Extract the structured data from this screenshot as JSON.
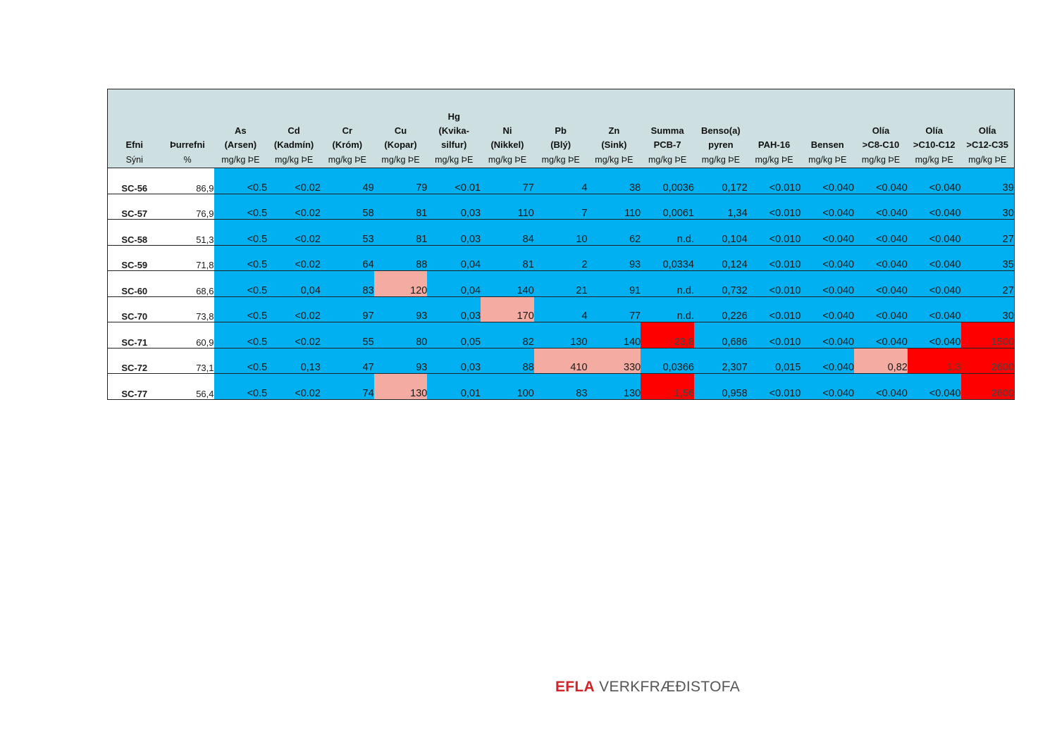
{
  "table": {
    "headers": [
      "Efni",
      "Þurrefni",
      "As\n(Arsen)",
      "Cd\n(Kadmín)",
      "Cr\n(Króm)",
      "Cu\n(Kopar)",
      "Hg\n(Kvika-\nsilfur)",
      "Ni\n(Nikkel)",
      "Pb\n(Blý)",
      "Zn\n(Sink)",
      "Summa\nPCB-7",
      "Benso(a)\npyren",
      "PAH-16",
      "Bensen",
      "Olía\n>C8-C10",
      "Olía\n>C10-C12",
      "OlÍa\n>C12-C35"
    ],
    "units": [
      "Sýni",
      "%",
      "mg/kg ÞE",
      "mg/kg ÞE",
      "mg/kg ÞE",
      "mg/kg ÞE",
      "mg/kg ÞE",
      "mg/kg ÞE",
      "mg/kg ÞE",
      "mg/kg ÞE",
      "mg/kg ÞE",
      "mg/kg ÞE",
      "mg/kg ÞE",
      "mg/kg ÞE",
      "mg/kg ÞE",
      "mg/kg ÞE",
      "mg/kg ÞE"
    ],
    "colors": {
      "normal": "#00b0f0",
      "above": "#f4aca2",
      "high": "#ff0000",
      "header": "#cddfe0"
    },
    "rows": [
      {
        "sample": "SC-56",
        "dry": "86,9",
        "values": [
          "<0.5",
          "<0.02",
          "49",
          "79",
          "<0.01",
          "77",
          "4",
          "38",
          "0,0036",
          "0,172",
          "<0.010",
          "<0.040",
          "<0.040",
          "<0.040",
          "39"
        ],
        "levels": [
          "",
          "",
          "",
          "",
          "",
          "",
          "",
          "",
          "",
          "",
          "",
          "",
          "",
          "",
          ""
        ]
      },
      {
        "sample": "SC-57",
        "dry": "76,9",
        "values": [
          "<0.5",
          "<0.02",
          "58",
          "81",
          "0,03",
          "110",
          "7",
          "110",
          "0,0061",
          "1,34",
          "<0.010",
          "<0.040",
          "<0.040",
          "<0.040",
          "30"
        ],
        "levels": [
          "",
          "",
          "",
          "",
          "",
          "",
          "",
          "",
          "",
          "",
          "",
          "",
          "",
          "",
          ""
        ]
      },
      {
        "sample": "SC-58",
        "dry": "51,3",
        "values": [
          "<0.5",
          "<0.02",
          "53",
          "81",
          "0,03",
          "84",
          "10",
          "62",
          "n.d.",
          "0,104",
          "<0.010",
          "<0.040",
          "<0.040",
          "<0.040",
          "27"
        ],
        "levels": [
          "",
          "",
          "",
          "",
          "",
          "",
          "",
          "",
          "",
          "",
          "",
          "",
          "",
          "",
          ""
        ]
      },
      {
        "sample": "SC-59",
        "dry": "71,8",
        "values": [
          "<0.5",
          "<0.02",
          "64",
          "88",
          "0,04",
          "81",
          "2",
          "93",
          "0,0334",
          "0,124",
          "<0.010",
          "<0.040",
          "<0.040",
          "<0.040",
          "35"
        ],
        "levels": [
          "",
          "",
          "",
          "",
          "",
          "",
          "",
          "",
          "",
          "",
          "",
          "",
          "",
          "",
          ""
        ]
      },
      {
        "sample": "SC-60",
        "dry": "68,6",
        "values": [
          "<0.5",
          "0,04",
          "83",
          "120",
          "0,04",
          "140",
          "21",
          "91",
          "n.d.",
          "0,732",
          "<0.010",
          "<0.040",
          "<0.040",
          "<0.040",
          "27"
        ],
        "levels": [
          "",
          "",
          "",
          "above",
          "",
          "",
          "",
          "",
          "",
          "",
          "",
          "",
          "",
          "",
          ""
        ]
      },
      {
        "sample": "SC-70",
        "dry": "73,8",
        "values": [
          "<0.5",
          "<0.02",
          "97",
          "93",
          "0,03",
          "170",
          "4",
          "77",
          "n.d.",
          "0,226",
          "<0.010",
          "<0.040",
          "<0.040",
          "<0.040",
          "30"
        ],
        "levels": [
          "",
          "",
          "",
          "",
          "",
          "above",
          "",
          "",
          "",
          "",
          "",
          "",
          "",
          "",
          ""
        ]
      },
      {
        "sample": "SC-71",
        "dry": "60,9",
        "values": [
          "<0.5",
          "<0.02",
          "55",
          "80",
          "0,05",
          "82",
          "130",
          "140",
          "23,8",
          "0,686",
          "<0.010",
          "<0.040",
          "<0.040",
          "<0.040",
          "1500"
        ],
        "levels": [
          "",
          "",
          "",
          "",
          "",
          "",
          "",
          "",
          "high",
          "",
          "",
          "",
          "",
          "",
          "high"
        ]
      },
      {
        "sample": "SC-72",
        "dry": "73,1",
        "values": [
          "<0.5",
          "0,13",
          "47",
          "93",
          "0,03",
          "88",
          "410",
          "330",
          "0,0366",
          "2,307",
          "0,015",
          "<0.040",
          "0,82",
          "1,3",
          "2600"
        ],
        "levels": [
          "",
          "",
          "",
          "",
          "",
          "",
          "above",
          "above",
          "",
          "",
          "",
          "",
          "above",
          "high",
          "high"
        ]
      },
      {
        "sample": "SC-77",
        "dry": "56,4",
        "values": [
          "<0.5",
          "<0.02",
          "74",
          "130",
          "0,01",
          "100",
          "83",
          "130",
          "1,56",
          "0,958",
          "<0.010",
          "<0.040",
          "<0.040",
          "<0.040",
          "2600"
        ],
        "levels": [
          "",
          "",
          "",
          "above",
          "",
          "",
          "",
          "",
          "high",
          "",
          "",
          "",
          "",
          "",
          "high"
        ]
      }
    ]
  },
  "footer": {
    "logo_brand": "EFLA",
    "logo_text": "VERKFRÆÐISTOFA"
  }
}
